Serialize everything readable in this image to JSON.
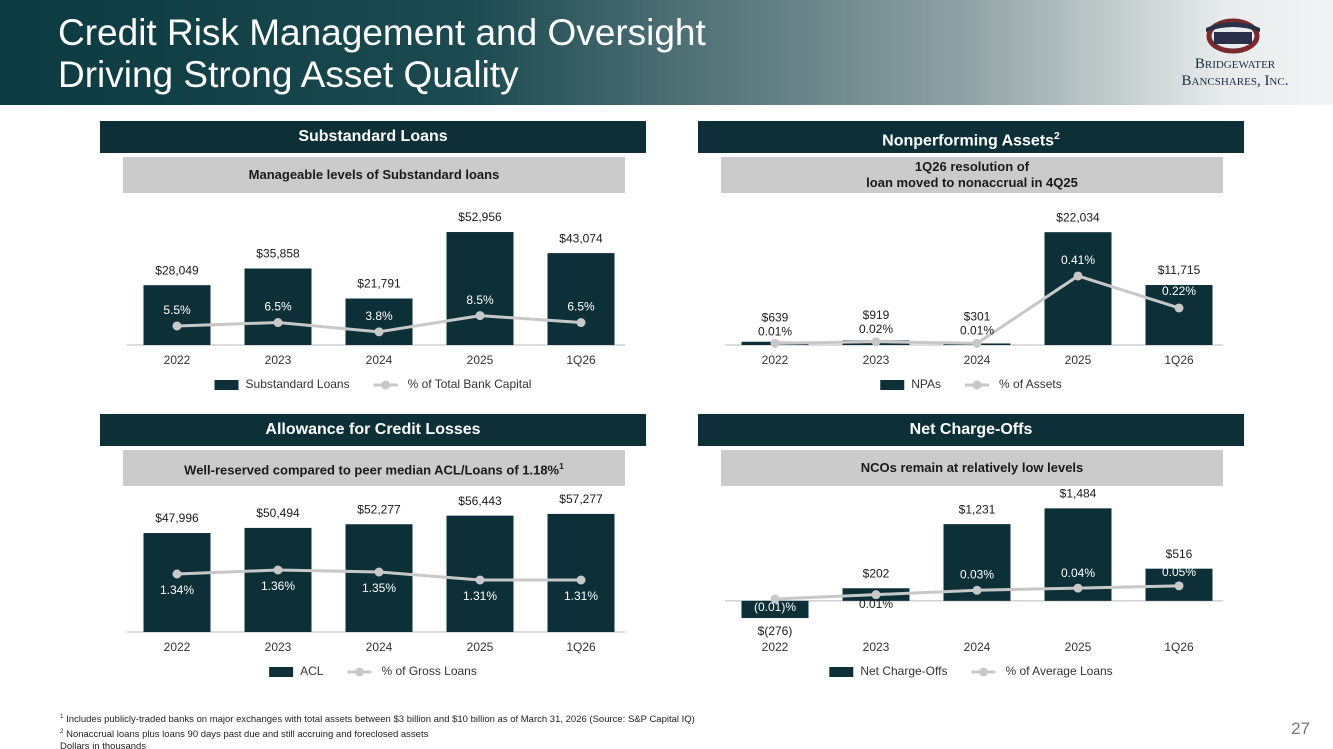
{
  "header": {
    "title_lines": [
      "Credit Risk Management and Oversight",
      "Driving Strong Asset Quality"
    ],
    "logo": [
      "Bridgewater",
      "Bancshares, Inc."
    ]
  },
  "chart_data": [
    {
      "type": "combo",
      "title": "Substandard Loans",
      "subtitle": "Manageable levels of Substandard loans",
      "categories": [
        "2022",
        "2023",
        "2024",
        "2025",
        "1Q26"
      ],
      "series": [
        {
          "name": "Substandard Loans",
          "type": "bar",
          "color": "#0d3038",
          "values": [
            28049,
            35858,
            21791,
            52956,
            43074
          ],
          "value_labels": [
            "$28,049",
            "$35,858",
            "$21,791",
            "$52,956",
            "$43,074"
          ]
        },
        {
          "name": "% of Total Bank Capital",
          "type": "line",
          "axis": "y2",
          "color": "#c8c8c8",
          "values": [
            5.5,
            6.5,
            3.8,
            8.5,
            6.5
          ],
          "value_labels": [
            "5.5%",
            "6.5%",
            "3.8%",
            "8.5%",
            "6.5%"
          ]
        }
      ],
      "ylim": [
        0,
        60000
      ],
      "y2lim": [
        0,
        37
      ]
    },
    {
      "type": "combo",
      "title": "Nonperforming Assets",
      "title_note": "2",
      "subtitle": "1Q26 resolution of\nloan moved to nonaccrual in 4Q25",
      "categories": [
        "2022",
        "2023",
        "2024",
        "2025",
        "1Q26"
      ],
      "series": [
        {
          "name": "NPAs",
          "type": "bar",
          "color": "#0d3038",
          "values": [
            639,
            919,
            301,
            22034,
            11715
          ],
          "value_labels": [
            "$639",
            "$919",
            "$301",
            "$22,034",
            "$11,715"
          ]
        },
        {
          "name": "% of Assets",
          "type": "line",
          "axis": "y2",
          "color": "#c8c8c8",
          "values": [
            0.01,
            0.02,
            0.01,
            0.41,
            0.22
          ],
          "value_labels": [
            "0.01%",
            "0.02%",
            "0.01%",
            "0.41%",
            "0.22%"
          ]
        }
      ],
      "ylim": [
        0,
        25000
      ],
      "y2lim": [
        0,
        0.76
      ]
    },
    {
      "type": "combo",
      "title": "Allowance for Credit Losses",
      "subtitle": "Well-reserved compared to peer median ACL/Loans of 1.18%",
      "subtitle_note": "1",
      "categories": [
        "2022",
        "2023",
        "2024",
        "2025",
        "1Q26"
      ],
      "series": [
        {
          "name": "ACL",
          "type": "bar",
          "color": "#0d3038",
          "values": [
            47996,
            50494,
            52277,
            56443,
            57277
          ],
          "value_labels": [
            "$47,996",
            "$50,494",
            "$52,277",
            "$56,443",
            "$57,277"
          ]
        },
        {
          "name": "% of Gross Loans",
          "type": "line",
          "axis": "y2",
          "color": "#c8c8c8",
          "values": [
            1.34,
            1.36,
            1.35,
            1.31,
            1.31
          ],
          "value_labels": [
            "1.34%",
            "1.36%",
            "1.35%",
            "1.31%",
            "1.31%"
          ]
        }
      ],
      "ylim": [
        0,
        65000
      ],
      "y2lim": [
        1.05,
        1.72
      ]
    },
    {
      "type": "combo",
      "title": "Net Charge-Offs",
      "subtitle": "NCOs remain at relatively low levels",
      "categories": [
        "2022",
        "2023",
        "2024",
        "2025",
        "1Q26"
      ],
      "series": [
        {
          "name": "Net Charge-Offs",
          "type": "bar",
          "color": "#0d3038",
          "values": [
            -276,
            202,
            1231,
            1484,
            516
          ],
          "value_labels": [
            "$(276)",
            "$202",
            "$1,231",
            "$1,484",
            "$516"
          ]
        },
        {
          "name": "% of Average Loans",
          "type": "line",
          "axis": "y2",
          "color": "#c8c8c8",
          "values": [
            -0.01,
            0.01,
            0.03,
            0.04,
            0.05
          ],
          "value_labels": [
            "(0.01)%",
            "0.01%",
            "0.03%",
            "0.04%",
            "0.05%"
          ]
        }
      ],
      "ylim": [
        -500,
        1650
      ],
      "y2lim": [
        -0.16,
        0.45
      ]
    }
  ],
  "footnotes": [
    {
      "marker": "1",
      "text": "Includes publicly-traded banks on major exchanges with total assets between $3 billion and $10 billion as of March 31, 2026 (Source: S&P Capital IQ)"
    },
    {
      "marker": "2",
      "text": "Nonaccrual loans plus loans 90 days past due and still accruing and foreclosed assets"
    },
    {
      "text": "Dollars in thousands"
    }
  ],
  "page_number": "27"
}
